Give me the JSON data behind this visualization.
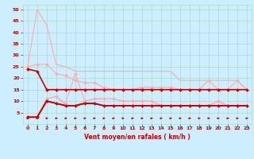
{
  "xlabel": "Vent moyen/en rafales ( km/h )",
  "bg_color": "#cceeff",
  "grid_color": "#aaddcc",
  "xlabel_color": "#cc0000",
  "tick_color": "#cc0000",
  "xlim": [
    -0.5,
    23.5
  ],
  "ylim": [
    0,
    52
  ],
  "yticks": [
    5,
    10,
    15,
    20,
    25,
    30,
    35,
    40,
    45,
    50
  ],
  "xticks": [
    0,
    1,
    2,
    3,
    4,
    5,
    6,
    7,
    8,
    9,
    10,
    11,
    12,
    13,
    14,
    15,
    16,
    17,
    18,
    19,
    20,
    21,
    22,
    23
  ],
  "series": [
    {
      "x": [
        0,
        1,
        2,
        3,
        4,
        5,
        6,
        7,
        8,
        9,
        10,
        11,
        12,
        13,
        14,
        15,
        16,
        17,
        18,
        19,
        20,
        21,
        22,
        23
      ],
      "y": [
        25,
        50,
        43,
        26,
        25,
        23,
        23,
        23,
        23,
        23,
        23,
        23,
        23,
        23,
        23,
        23,
        19,
        19,
        19,
        19,
        19,
        19,
        19,
        15
      ],
      "color": "#ffaaaa",
      "marker": null,
      "lw": 0.8
    },
    {
      "x": [
        0,
        1,
        2,
        3,
        4,
        5,
        6,
        7,
        8,
        9,
        10,
        11,
        12,
        13,
        14,
        15,
        16,
        17,
        18,
        19,
        20,
        21,
        22,
        23
      ],
      "y": [
        25,
        26,
        26,
        22,
        21,
        19,
        18,
        18,
        16,
        15,
        15,
        15,
        16,
        16,
        16,
        16,
        15,
        15,
        15,
        19,
        15,
        15,
        19,
        15
      ],
      "color": "#ffaaaa",
      "marker": "D",
      "ms": 2.0,
      "lw": 0.8
    },
    {
      "x": [
        0,
        1,
        2,
        3,
        4,
        5,
        6,
        7,
        8,
        9,
        10,
        11,
        12,
        13,
        14,
        15,
        16,
        17,
        18,
        19,
        20,
        21,
        22,
        23
      ],
      "y": [
        3,
        3,
        11,
        12,
        9,
        22,
        10,
        11,
        11,
        11,
        10,
        10,
        10,
        10,
        8,
        8,
        8,
        8,
        8,
        8,
        10,
        8,
        8,
        8
      ],
      "color": "#ffaaaa",
      "marker": "D",
      "ms": 2.0,
      "lw": 0.8
    },
    {
      "x": [
        0,
        1,
        2,
        3,
        4,
        5,
        6,
        7,
        8,
        9,
        10,
        11,
        12,
        13,
        14,
        15,
        16,
        17,
        18,
        19,
        20,
        21,
        22,
        23
      ],
      "y": [
        3,
        3,
        11,
        12,
        8,
        8,
        10,
        11,
        11,
        11,
        10,
        10,
        10,
        10,
        8,
        8,
        8,
        8,
        8,
        8,
        10,
        8,
        8,
        8
      ],
      "color": "#ffaaaa",
      "marker": null,
      "lw": 0.8
    },
    {
      "x": [
        0,
        1,
        2,
        3,
        4,
        5,
        6,
        7,
        8,
        9,
        10,
        11,
        12,
        13,
        14,
        15,
        16,
        17,
        18,
        19,
        20,
        21,
        22,
        23
      ],
      "y": [
        24,
        23,
        15,
        15,
        15,
        15,
        15,
        15,
        15,
        15,
        15,
        15,
        15,
        15,
        15,
        15,
        15,
        15,
        15,
        15,
        15,
        15,
        15,
        15
      ],
      "color": "#cc0000",
      "marker": "D",
      "ms": 2.0,
      "lw": 1.2
    },
    {
      "x": [
        0,
        1,
        2,
        3,
        4,
        5,
        6,
        7,
        8,
        9,
        10,
        11,
        12,
        13,
        14,
        15,
        16,
        17,
        18,
        19,
        20,
        21,
        22,
        23
      ],
      "y": [
        3,
        3,
        10,
        9,
        8,
        8,
        9,
        9,
        8,
        8,
        8,
        8,
        8,
        8,
        8,
        8,
        8,
        8,
        8,
        8,
        8,
        8,
        8,
        8
      ],
      "color": "#cc0000",
      "marker": "D",
      "ms": 2.0,
      "lw": 1.2
    },
    {
      "x": [
        0,
        1,
        2,
        3,
        4,
        5,
        6,
        7,
        8,
        9,
        10,
        11,
        12,
        13,
        14,
        15,
        16,
        17,
        18,
        19,
        20,
        21,
        22,
        23
      ],
      "y": [
        3,
        3,
        10,
        9,
        8,
        8,
        9,
        9,
        8,
        8,
        8,
        8,
        8,
        8,
        8,
        8,
        8,
        8,
        8,
        8,
        8,
        8,
        8,
        8
      ],
      "color": "#cc0000",
      "marker": null,
      "lw": 1.2
    }
  ]
}
